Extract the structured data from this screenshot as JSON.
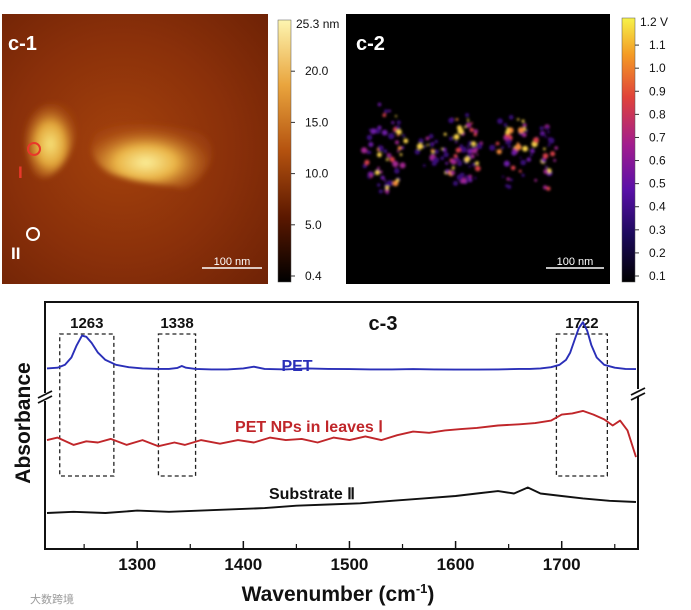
{
  "colors": {
    "pet": "#2a2fb8",
    "pet_nps": "#c0262a",
    "substrate": "#111111",
    "afm_dark": "#5a1a02",
    "afm_bright": "#f6e58a",
    "marker_red": "#e8382a"
  },
  "panels": {
    "c1": {
      "label": "c-1",
      "scale_bar": "100 nm",
      "marker_i": "I",
      "marker_ii": "II"
    },
    "c2": {
      "label": "c-2",
      "scale_bar": "100 nm"
    },
    "c3": {
      "label": "c-3"
    }
  },
  "colorbars": {
    "c1": {
      "unit_label": "25.3 nm",
      "ticks": [
        "20.0",
        "15.0",
        "10.0",
        "5.0",
        "0.4"
      ]
    },
    "c2": {
      "unit_label": "1.2 V",
      "ticks": [
        "1.1",
        "1.0",
        "0.9",
        "0.8",
        "0.7",
        "0.6",
        "0.5",
        "0.4",
        "0.3",
        "0.2",
        "0.1"
      ]
    }
  },
  "watermark": "大数跨境",
  "chart_data": {
    "type": "line",
    "title": "c-3",
    "xlabel": "Wavenumber (cm-1)",
    "ylabel": "Absorbance",
    "xlim": [
      1215,
      1770
    ],
    "ylim": [
      0,
      1
    ],
    "xticks": [
      1300,
      1400,
      1500,
      1600,
      1700
    ],
    "xtick_labels": [
      "1300",
      "1400",
      "1500",
      "1600",
      "1700"
    ],
    "y_axis_break": true,
    "highlight_bands": [
      {
        "label": "1263",
        "x_range": [
          1227,
          1278
        ]
      },
      {
        "label": "1338",
        "x_range": [
          1320,
          1355
        ]
      },
      {
        "label": "1722",
        "x_range": [
          1695,
          1743
        ]
      }
    ],
    "series": [
      {
        "name": "PET",
        "x": [
          1215,
          1225,
          1232,
          1238,
          1243,
          1248,
          1252,
          1257,
          1263,
          1270,
          1280,
          1292,
          1305,
          1320,
          1330,
          1338,
          1342,
          1346,
          1355,
          1370,
          1385,
          1400,
          1410,
          1420,
          1440,
          1460,
          1480,
          1500,
          1520,
          1540,
          1560,
          1580,
          1600,
          1620,
          1640,
          1660,
          1670,
          1680,
          1690,
          1698,
          1704,
          1708,
          1712,
          1716,
          1720,
          1724,
          1728,
          1733,
          1740,
          1750,
          1760,
          1770
        ],
        "y": [
          0.735,
          0.738,
          0.75,
          0.78,
          0.83,
          0.87,
          0.865,
          0.84,
          0.8,
          0.77,
          0.75,
          0.74,
          0.735,
          0.733,
          0.733,
          0.737,
          0.745,
          0.738,
          0.733,
          0.731,
          0.731,
          0.735,
          0.742,
          0.733,
          0.731,
          0.735,
          0.733,
          0.732,
          0.731,
          0.731,
          0.732,
          0.731,
          0.73,
          0.73,
          0.731,
          0.733,
          0.733,
          0.735,
          0.74,
          0.75,
          0.77,
          0.8,
          0.85,
          0.9,
          0.925,
          0.89,
          0.83,
          0.78,
          0.75,
          0.738,
          0.733,
          0.732
        ]
      },
      {
        "name": "PET NPs in leaves Ⅰ",
        "x": [
          1215,
          1225,
          1240,
          1252,
          1263,
          1275,
          1290,
          1305,
          1320,
          1335,
          1345,
          1360,
          1378,
          1395,
          1410,
          1425,
          1440,
          1455,
          1470,
          1485,
          1500,
          1515,
          1530,
          1545,
          1560,
          1575,
          1590,
          1605,
          1620,
          1640,
          1660,
          1675,
          1690,
          1700,
          1710,
          1720,
          1730,
          1740,
          1748,
          1755,
          1762,
          1770
        ],
        "y": [
          0.44,
          0.45,
          0.42,
          0.435,
          0.43,
          0.445,
          0.42,
          0.44,
          0.415,
          0.43,
          0.42,
          0.44,
          0.425,
          0.44,
          0.43,
          0.45,
          0.44,
          0.445,
          0.43,
          0.45,
          0.44,
          0.455,
          0.44,
          0.46,
          0.475,
          0.47,
          0.48,
          0.485,
          0.49,
          0.5,
          0.505,
          0.51,
          0.52,
          0.545,
          0.55,
          0.56,
          0.545,
          0.525,
          0.5,
          0.52,
          0.48,
          0.37
        ]
      },
      {
        "name": "Substrate Ⅱ",
        "x": [
          1215,
          1240,
          1270,
          1300,
          1330,
          1360,
          1390,
          1420,
          1450,
          1480,
          1510,
          1540,
          1570,
          1600,
          1620,
          1640,
          1655,
          1668,
          1680,
          1700,
          1720,
          1745,
          1770
        ],
        "y": [
          0.14,
          0.145,
          0.14,
          0.15,
          0.145,
          0.15,
          0.155,
          0.16,
          0.17,
          0.175,
          0.18,
          0.19,
          0.2,
          0.21,
          0.22,
          0.23,
          0.22,
          0.245,
          0.22,
          0.21,
          0.2,
          0.19,
          0.185
        ]
      }
    ],
    "series_labels": [
      "PET",
      "PET NPs in leaves Ⅰ",
      "Substrate Ⅱ"
    ]
  }
}
